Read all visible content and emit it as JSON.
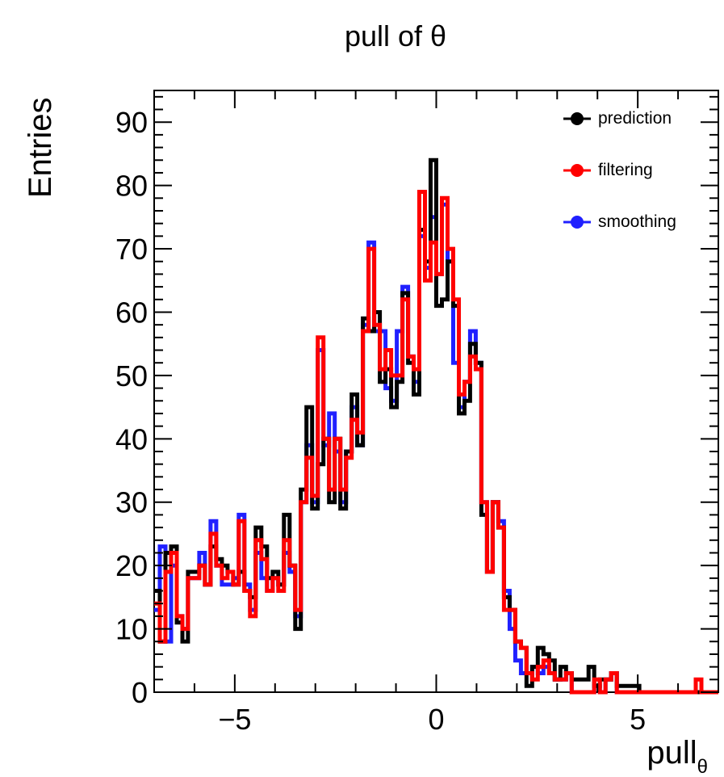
{
  "chart_data": {
    "type": "line",
    "title": "pull of θ",
    "xlabel": "pull",
    "xlabel_sub": "θ",
    "ylabel": "Entries",
    "xlim": [
      -7,
      7
    ],
    "ylim": [
      0,
      95
    ],
    "x_ticks": [
      -5,
      0,
      5
    ],
    "x_tick_labels": [
      "−5",
      "0",
      "5"
    ],
    "y_ticks": [
      0,
      10,
      20,
      30,
      40,
      50,
      60,
      70,
      80,
      90
    ],
    "y_tick_labels": [
      "0",
      "10",
      "20",
      "30",
      "40",
      "50",
      "60",
      "70",
      "80",
      "90"
    ],
    "grid": false,
    "legend_position": "top-right",
    "bin_edges_start": -7,
    "bin_width": 0.14,
    "series": [
      {
        "name": "prediction",
        "color": "#000000",
        "values": [
          16,
          8,
          22,
          23,
          11,
          8,
          19,
          19,
          20,
          17,
          23,
          21,
          20,
          19,
          17,
          19,
          16,
          15,
          26,
          23,
          18,
          19,
          17,
          28,
          20,
          10,
          32,
          45,
          29,
          36,
          40,
          30,
          40,
          29,
          38,
          47,
          39,
          59,
          57,
          60,
          49,
          51,
          45,
          49,
          63,
          52,
          47,
          73,
          68,
          84,
          61,
          62,
          68,
          61,
          44,
          46,
          55,
          52,
          28,
          19,
          30,
          26,
          15,
          13,
          8,
          7,
          1,
          4,
          7,
          6,
          5,
          2,
          4,
          3,
          2,
          2,
          2,
          4,
          1,
          2,
          2,
          3,
          1,
          1,
          1,
          1,
          0,
          0,
          0,
          0,
          0,
          0,
          0,
          0,
          0,
          0,
          0,
          0,
          0,
          0
        ]
      },
      {
        "name": "filtering",
        "color": "#ff0000",
        "values": [
          14,
          8,
          19,
          22,
          12,
          10,
          18,
          18,
          20,
          17,
          25,
          20,
          18,
          19,
          17,
          27,
          16,
          12,
          24,
          21,
          16,
          18,
          16,
          24,
          20,
          13,
          30,
          37,
          31,
          56,
          40,
          32,
          40,
          32,
          37,
          43,
          41,
          57,
          70,
          58,
          51,
          54,
          50,
          50,
          62,
          53,
          51,
          79,
          65,
          71,
          66,
          78,
          70,
          62,
          47,
          49,
          53,
          51,
          30,
          19,
          30,
          26,
          13,
          13,
          8,
          7,
          3,
          2,
          4,
          5,
          3,
          2,
          2,
          3,
          0,
          0,
          0,
          0,
          2,
          0,
          2,
          3,
          0,
          0,
          0,
          0,
          0,
          0,
          0,
          0,
          0,
          0,
          0,
          0,
          0,
          0,
          2,
          0,
          0,
          0
        ]
      },
      {
        "name": "smoothing",
        "color": "#2020ff",
        "values": [
          13,
          23,
          8,
          20,
          12,
          10,
          18,
          18,
          22,
          17,
          27,
          20,
          17,
          17,
          18,
          28,
          17,
          13,
          22,
          18,
          16,
          18,
          17,
          22,
          19,
          12,
          30,
          39,
          30,
          54,
          39,
          44,
          38,
          30,
          38,
          45,
          39,
          58,
          71,
          57,
          57,
          48,
          46,
          57,
          64,
          53,
          49,
          72,
          67,
          75,
          66,
          77,
          68,
          52,
          45,
          49,
          57,
          52,
          30,
          19,
          30,
          27,
          16,
          10,
          5,
          3,
          3,
          4,
          3,
          4,
          3,
          2,
          2,
          3,
          0,
          0,
          0,
          0,
          1,
          0,
          2,
          3,
          0,
          0,
          0,
          0,
          0,
          0,
          0,
          0,
          0,
          0,
          0,
          0,
          0,
          0,
          0,
          0,
          0,
          0
        ]
      }
    ]
  }
}
